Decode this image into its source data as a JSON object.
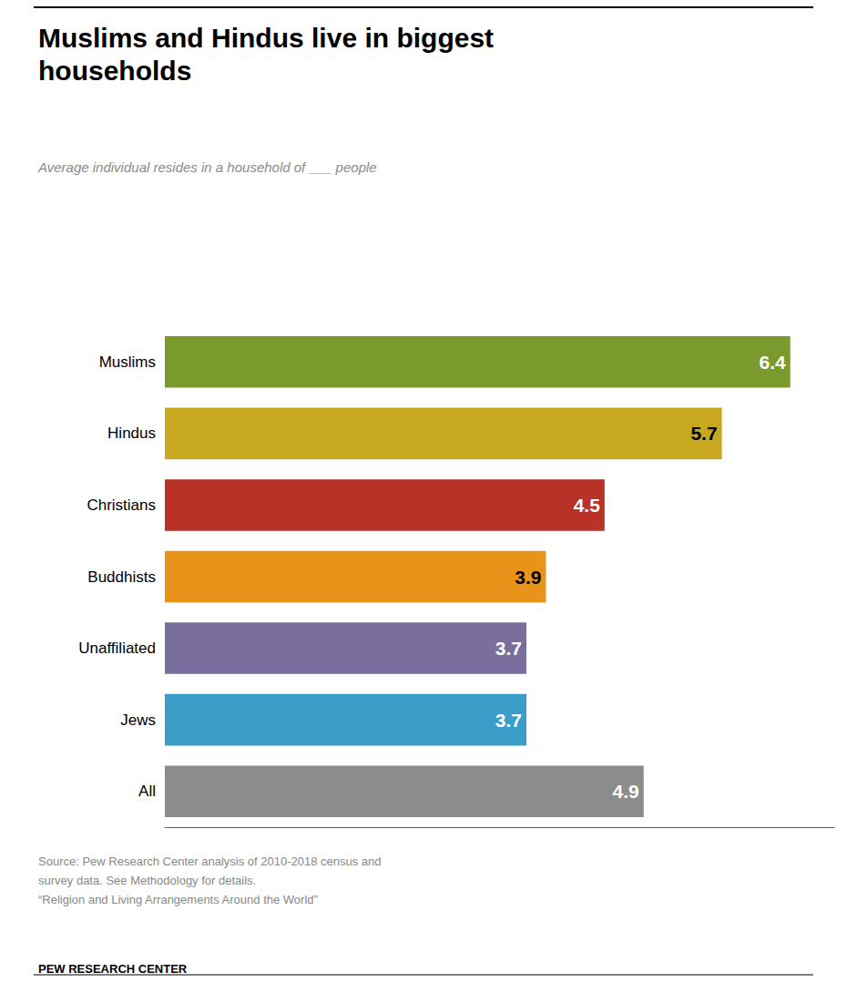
{
  "chart_data": {
    "type": "bar",
    "title": "Muslims and Hindus live in biggest\nhouseholds",
    "subtitle": "Average individual resides in a household of ___ people",
    "categories": [
      "Muslims",
      "Hindus",
      "Christians",
      "Buddhists",
      "Unaffiliated",
      "Jews",
      "All"
    ],
    "values": [
      6.4,
      5.7,
      4.5,
      3.9,
      3.7,
      3.7,
      4.9
    ],
    "colors": [
      "#7a9a2e",
      "#c8a820",
      "#b83228",
      "#e8931a",
      "#7a6e9e",
      "#3a9ec8",
      "#8c8c8c"
    ],
    "orientation": "horizontal",
    "xlim": [
      0,
      6.85
    ],
    "tick_labels": "y",
    "grid": false,
    "data_labels": true,
    "annotations": [
      "Source: Pew Research Center analysis of 2010-2018 census and\nsurvey data. See Methodology for details.\n“Religion and Living Arrangements Around the World”",
      "PEW RESEARCH CENTER"
    ]
  }
}
